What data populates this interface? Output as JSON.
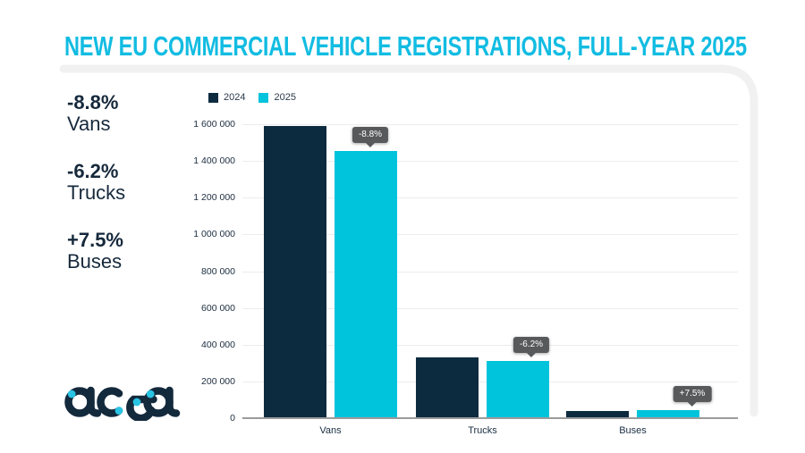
{
  "title": "NEW EU COMMERCIAL VEHICLE REGISTRATIONS, FULL-YEAR 2025",
  "stats": [
    {
      "value": "-8.8%",
      "label": "Vans"
    },
    {
      "value": "-6.2%",
      "label": "Trucks"
    },
    {
      "value": "+7.5%",
      "label": "Buses"
    }
  ],
  "legend": [
    {
      "label": "2024",
      "color": "#0D2B3F"
    },
    {
      "label": "2025",
      "color": "#00C3DC"
    }
  ],
  "logo_text": "acea",
  "colors": {
    "title_cyan": "#12BCE2",
    "bar_2024": "#0D2B3F",
    "bar_2025": "#00C3DC",
    "tooltip_bg": "#58595B",
    "axis_text": "#16293B",
    "baseline": "#9B9B9B",
    "gridline": "#ECECEC",
    "card_outline": "#F1F1F1"
  },
  "chart_data": {
    "type": "bar",
    "title": "NEW EU COMMERCIAL VEHICLE REGISTRATIONS, FULL-YEAR 2025",
    "categories": [
      "Vans",
      "Trucks",
      "Buses"
    ],
    "series": [
      {
        "name": "2024",
        "color": "#0D2B3F",
        "values": [
          1586000,
          328000,
          36500
        ]
      },
      {
        "name": "2025",
        "color": "#00C3DC",
        "values": [
          1447000,
          307700,
          39200
        ]
      }
    ],
    "annotations": [
      {
        "category": "Vans",
        "series": "2025",
        "label": "-8.8%"
      },
      {
        "category": "Trucks",
        "series": "2025",
        "label": "-6.2%"
      },
      {
        "category": "Buses",
        "series": "2025",
        "label": "+7.5%"
      }
    ],
    "yticks": [
      {
        "value": 0,
        "label": "0"
      },
      {
        "value": 200000,
        "label": "200 000"
      },
      {
        "value": 400000,
        "label": "400 000"
      },
      {
        "value": 600000,
        "label": "600 000"
      },
      {
        "value": 800000,
        "label": "800 000"
      },
      {
        "value": 1000000,
        "label": "1 000 000"
      },
      {
        "value": 1200000,
        "label": "1 200 000"
      },
      {
        "value": 1400000,
        "label": "1 400 000"
      },
      {
        "value": 1600000,
        "label": "1 600 000"
      }
    ],
    "xlabel": "",
    "ylabel": "",
    "ylim": [
      0,
      1600000
    ],
    "grid": true,
    "legend_position": "top-left"
  }
}
